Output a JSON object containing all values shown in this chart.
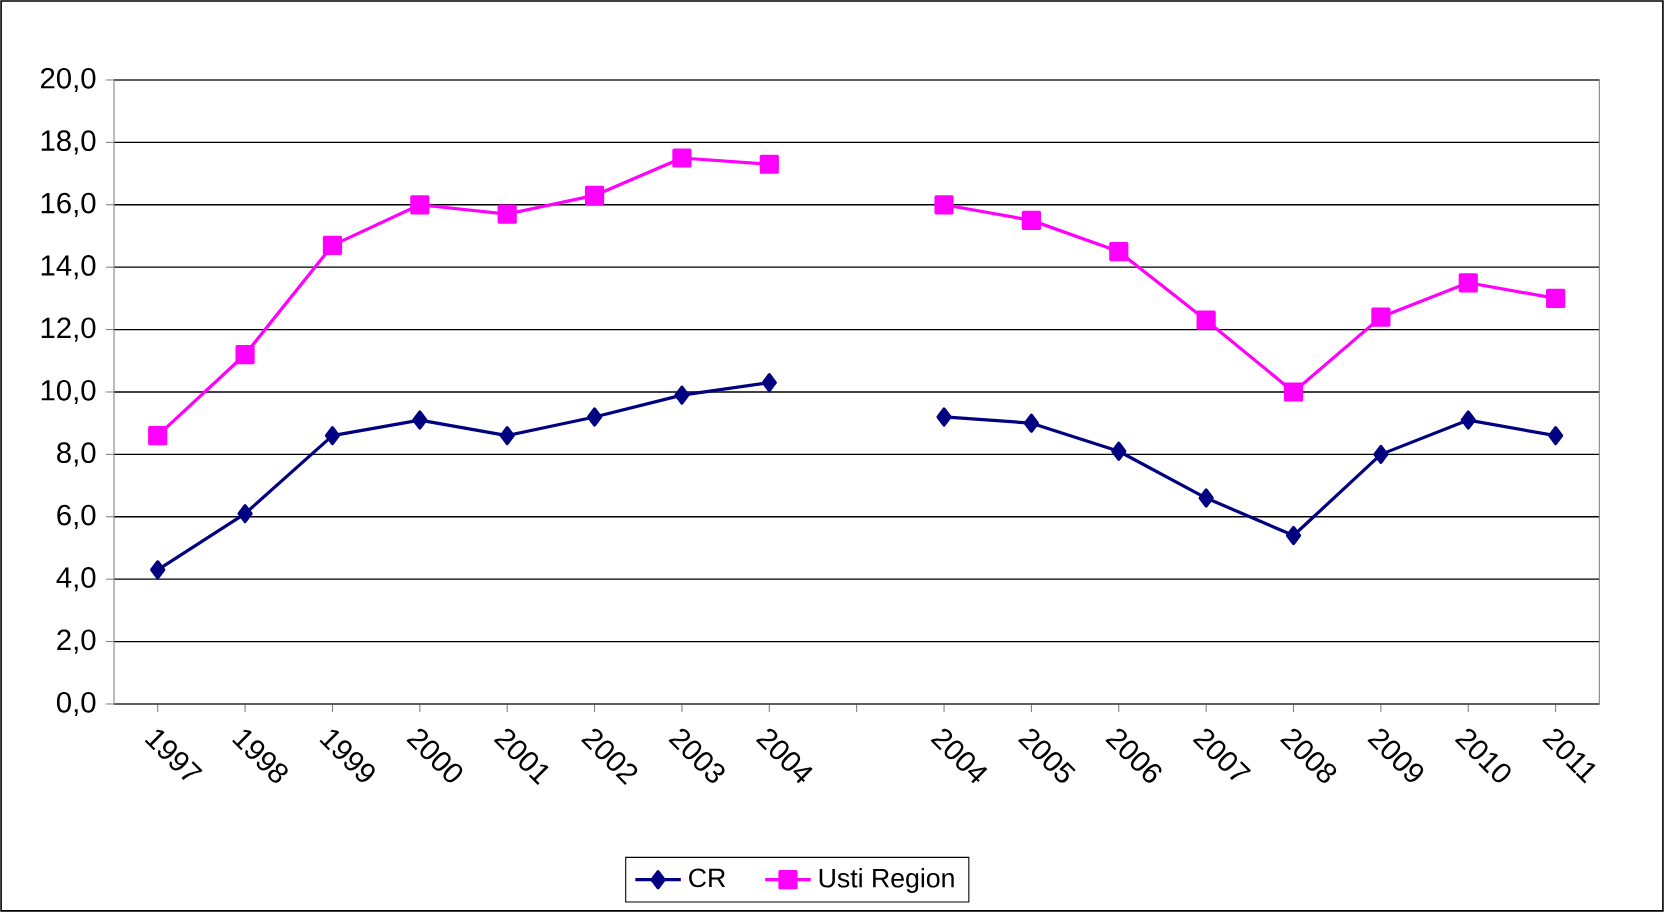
{
  "chart_data": {
    "type": "line",
    "categories": [
      "1997",
      "1998",
      "1999",
      "2000",
      "2001",
      "2002",
      "2003",
      "2004",
      null,
      "2004",
      "2005",
      "2006",
      "2007",
      "2008",
      "2009",
      "2010",
      "2011"
    ],
    "series": [
      {
        "name": "CR",
        "color": "#000080",
        "marker": "diamond",
        "values": [
          4.3,
          6.1,
          8.6,
          9.1,
          8.6,
          9.2,
          9.9,
          10.3,
          null,
          9.2,
          9.0,
          8.1,
          6.6,
          5.4,
          8.0,
          9.1,
          8.6
        ]
      },
      {
        "name": "Usti Region",
        "color": "#ff00ff",
        "marker": "square",
        "values": [
          8.6,
          11.2,
          14.7,
          16.0,
          15.7,
          16.3,
          17.5,
          17.3,
          null,
          16.0,
          15.5,
          14.5,
          12.3,
          10.0,
          12.4,
          13.5,
          13.0
        ]
      }
    ],
    "ylim": [
      0,
      20
    ],
    "yticks": [
      {
        "value": 0,
        "label": "0,0"
      },
      {
        "value": 2,
        "label": "2,0"
      },
      {
        "value": 4,
        "label": "4,0"
      },
      {
        "value": 6,
        "label": "6,0"
      },
      {
        "value": 8,
        "label": "8,0"
      },
      {
        "value": 10,
        "label": "10,0"
      },
      {
        "value": 12,
        "label": "12,0"
      },
      {
        "value": 14,
        "label": "14,0"
      },
      {
        "value": 16,
        "label": "16,0"
      },
      {
        "value": 18,
        "label": "18,0"
      },
      {
        "value": 20,
        "label": "20,0"
      }
    ],
    "grid": "y",
    "legend": "bottom",
    "line_style": "solid"
  }
}
